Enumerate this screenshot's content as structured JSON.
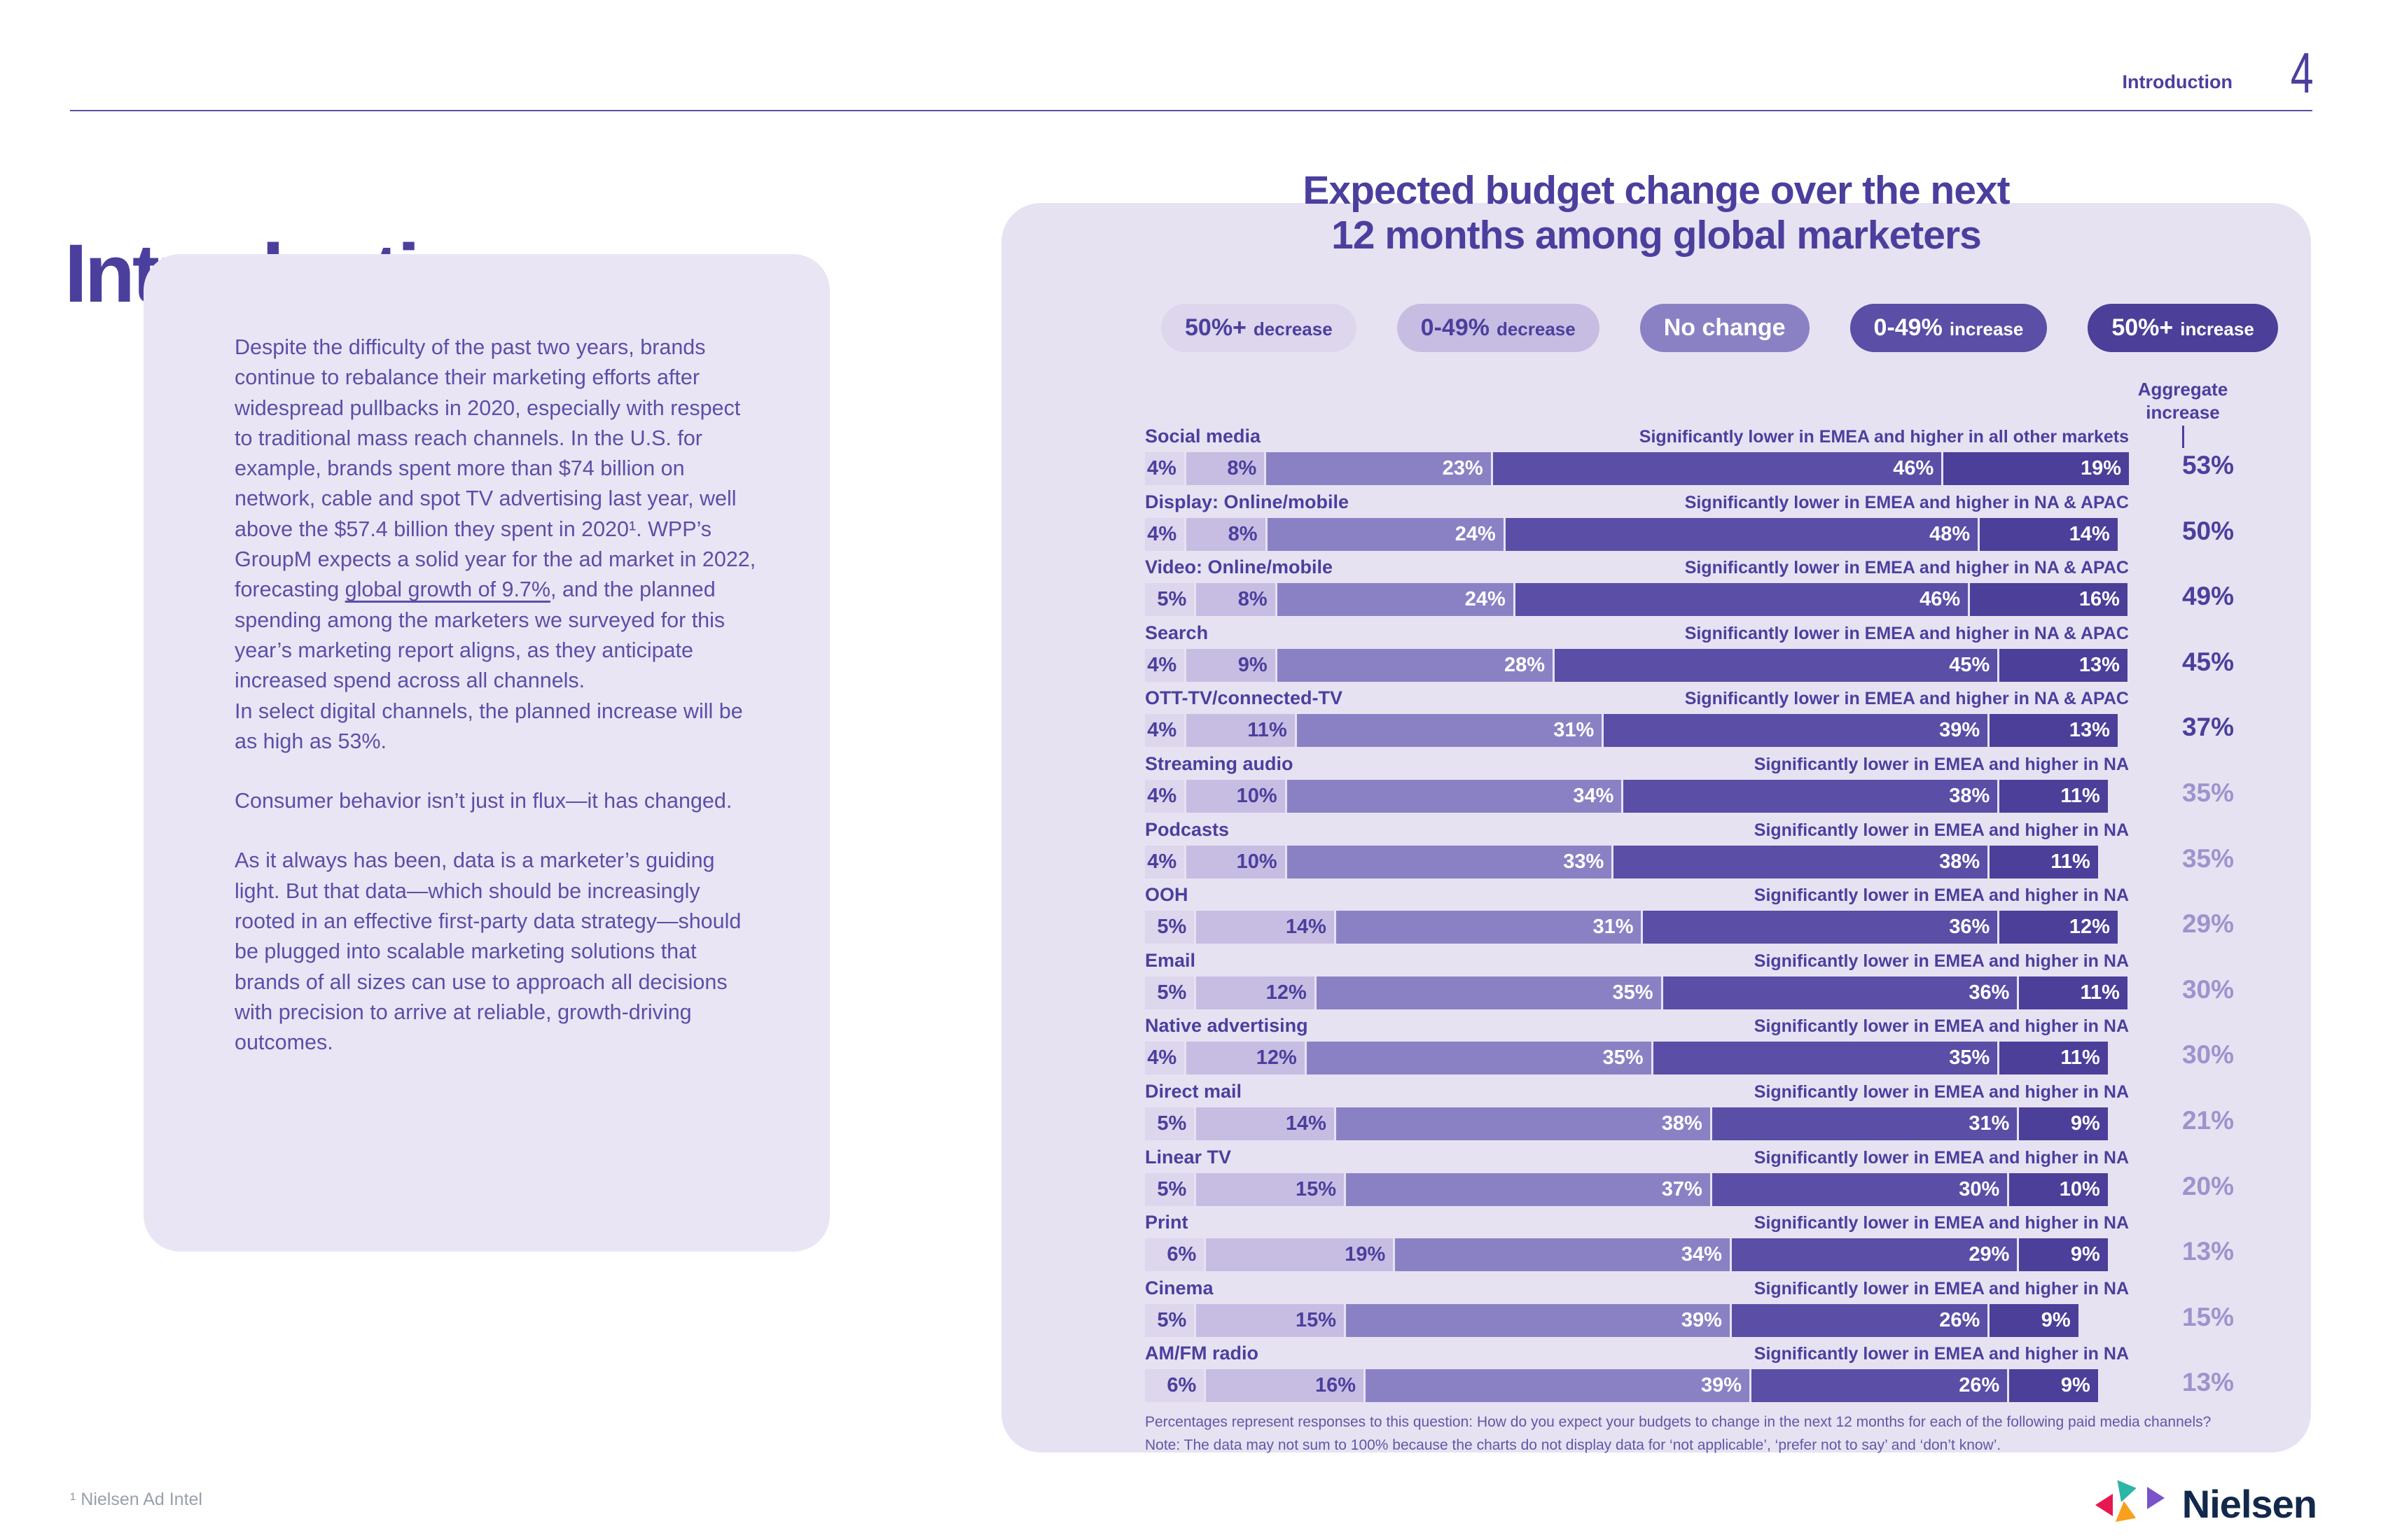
{
  "header": {
    "section_label": "Introduction",
    "page_number": "4"
  },
  "intro": {
    "heading": "Introduction",
    "p1_before_link": "Despite the difficulty of the past two years, brands continue to rebalance their marketing efforts after widespread pullbacks in 2020, especially with respect to traditional mass reach channels. In the U.S. for example, brands spent more than $74 billion on network, cable and spot TV advertising last year, well above the $57.4 billion they spent in 2020¹. WPP’s GroupM expects a solid year for the ad market in 2022, forecasting ",
    "p1_link": "global growth of 9.7%",
    "p1_after_link": ", and the planned spending among the marketers we surveyed for this year’s marketing report aligns, as they anticipate increased spend across all channels.",
    "p1_line2": "In select digital channels, the planned increase will be as high as 53%.",
    "p2": "Consumer behavior isn’t just in flux—it has changed.",
    "p3": "As it always has been, data is a marketer’s guiding light. But that data—which should be increasingly rooted in an effective first-party data strategy—should be plugged into scalable marketing solutions that brands of all sizes can use to approach all decisions with precision to arrive at reliable, growth-driving outcomes."
  },
  "chart": {
    "title_line1": "Expected budget change over the next",
    "title_line2": "12 months among global marketers",
    "aggregate_header": "Aggregate increase",
    "colors": {
      "segment_bg": [
        "#ddd6ec",
        "#c7bde2",
        "#8a81c5",
        "#5a4ea6",
        "#4b3f99"
      ],
      "segment_fg": [
        "#4b3f9e",
        "#4b3f9e",
        "#ffffff",
        "#ffffff",
        "#ffffff"
      ],
      "aggregate_strong": "#4b3f9e",
      "aggregate_weak": "#9d94cd"
    },
    "legend": [
      {
        "big": "50%+",
        "small": "decrease"
      },
      {
        "big": "0-49%",
        "small": "decrease"
      },
      {
        "big": "No change",
        "small": ""
      },
      {
        "big": "0-49%",
        "small": "increase"
      },
      {
        "big": "50%+",
        "small": "increase"
      }
    ],
    "rows": [
      {
        "label": "Social media",
        "annotation": "Significantly lower in EMEA and higher in all other markets",
        "values": [
          4,
          8,
          23,
          46,
          19
        ],
        "aggregate": 53,
        "strong": true
      },
      {
        "label": "Display: Online/mobile",
        "annotation": "Significantly lower in EMEA and higher in NA & APAC",
        "values": [
          4,
          8,
          24,
          48,
          14
        ],
        "aggregate": 50,
        "strong": true
      },
      {
        "label": "Video: Online/mobile",
        "annotation": "Significantly lower in EMEA and higher in NA & APAC",
        "values": [
          5,
          8,
          24,
          46,
          16
        ],
        "aggregate": 49,
        "strong": true
      },
      {
        "label": "Search",
        "annotation": "Significantly lower in EMEA and higher in NA & APAC",
        "values": [
          4,
          9,
          28,
          45,
          13
        ],
        "aggregate": 45,
        "strong": true
      },
      {
        "label": "OTT-TV/connected-TV",
        "annotation": "Significantly lower in EMEA and higher in NA & APAC",
        "values": [
          4,
          11,
          31,
          39,
          13
        ],
        "aggregate": 37,
        "strong": true
      },
      {
        "label": "Streaming audio",
        "annotation": "Significantly lower in EMEA and higher in NA",
        "values": [
          4,
          10,
          34,
          38,
          11
        ],
        "aggregate": 35,
        "strong": false
      },
      {
        "label": "Podcasts",
        "annotation": "Significantly lower in EMEA and higher in NA",
        "values": [
          4,
          10,
          33,
          38,
          11
        ],
        "aggregate": 35,
        "strong": false
      },
      {
        "label": "OOH",
        "annotation": "Significantly lower in EMEA and higher in NA",
        "values": [
          5,
          14,
          31,
          36,
          12
        ],
        "aggregate": 29,
        "strong": false
      },
      {
        "label": "Email",
        "annotation": "Significantly lower in EMEA and higher in NA",
        "values": [
          5,
          12,
          35,
          36,
          11
        ],
        "aggregate": 30,
        "strong": false
      },
      {
        "label": "Native advertising",
        "annotation": "Significantly lower in EMEA and higher in NA",
        "values": [
          4,
          12,
          35,
          35,
          11
        ],
        "aggregate": 30,
        "strong": false
      },
      {
        "label": "Direct mail",
        "annotation": "Significantly lower in EMEA and higher in NA",
        "values": [
          5,
          14,
          38,
          31,
          9
        ],
        "aggregate": 21,
        "strong": false
      },
      {
        "label": "Linear TV",
        "annotation": "Significantly lower in EMEA and higher in NA",
        "values": [
          5,
          15,
          37,
          30,
          10
        ],
        "aggregate": 20,
        "strong": false
      },
      {
        "label": "Print",
        "annotation": "Significantly lower in EMEA and higher in NA",
        "values": [
          6,
          19,
          34,
          29,
          9
        ],
        "aggregate": 13,
        "strong": false
      },
      {
        "label": "Cinema",
        "annotation": "Significantly lower in EMEA and higher in NA",
        "values": [
          5,
          15,
          39,
          26,
          9
        ],
        "aggregate": 15,
        "strong": false
      },
      {
        "label": "AM/FM radio",
        "annotation": "Significantly lower in EMEA and higher in NA",
        "values": [
          6,
          16,
          39,
          26,
          9
        ],
        "aggregate": 13,
        "strong": false
      }
    ],
    "footnote_line1": "Percentages represent responses to this question: How do you expect your budgets to change in the next 12 months for each of the following paid media channels?",
    "footnote_line2": "Note: The data may not sum to 100% because the charts do not display data for ‘not applicable’, ‘prefer not to say’ and ‘don’t know’."
  },
  "chart_data": {
    "type": "bar",
    "stacked": true,
    "orientation": "horizontal",
    "title": "Expected budget change over the next 12 months among global marketers",
    "unit": "%",
    "categories": [
      "Social media",
      "Display: Online/mobile",
      "Video: Online/mobile",
      "Search",
      "OTT-TV/connected-TV",
      "Streaming audio",
      "Podcasts",
      "OOH",
      "Email",
      "Native advertising",
      "Direct mail",
      "Linear TV",
      "Print",
      "Cinema",
      "AM/FM radio"
    ],
    "series": [
      {
        "name": "50%+ decrease",
        "values": [
          4,
          4,
          5,
          4,
          4,
          4,
          4,
          5,
          5,
          4,
          5,
          5,
          6,
          5,
          6
        ]
      },
      {
        "name": "0-49% decrease",
        "values": [
          8,
          8,
          8,
          9,
          11,
          10,
          10,
          14,
          12,
          12,
          14,
          15,
          19,
          15,
          16
        ]
      },
      {
        "name": "No change",
        "values": [
          23,
          24,
          24,
          28,
          31,
          34,
          33,
          31,
          35,
          35,
          38,
          37,
          34,
          39,
          39
        ]
      },
      {
        "name": "0-49% increase",
        "values": [
          46,
          48,
          46,
          45,
          39,
          38,
          38,
          36,
          36,
          35,
          31,
          30,
          29,
          26,
          26
        ]
      },
      {
        "name": "50%+ increase",
        "values": [
          19,
          14,
          16,
          13,
          13,
          11,
          11,
          12,
          11,
          11,
          9,
          10,
          9,
          9,
          9
        ]
      }
    ],
    "aggregate_increase": [
      53,
      50,
      49,
      45,
      37,
      35,
      35,
      29,
      30,
      30,
      21,
      20,
      13,
      15,
      13
    ],
    "xlim": [
      0,
      100
    ],
    "legend_position": "top"
  },
  "footer": {
    "source_note": "¹ Nielsen Ad Intel",
    "brand": "Nielsen"
  }
}
